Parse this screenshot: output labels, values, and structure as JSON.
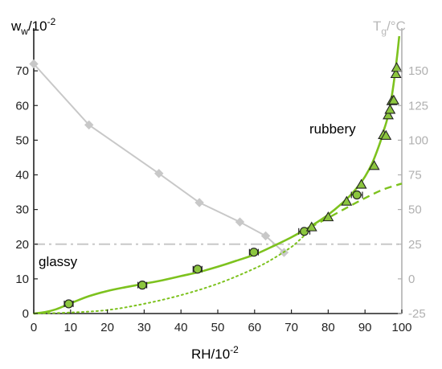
{
  "chart_data": {
    "type": "scatter",
    "xlabel": "RH/10",
    "xlabel_sup": "-2",
    "ylabel_left": "w",
    "ylabel_left_sub": "w",
    "ylabel_left_suffix": "/10",
    "ylabel_left_sup": "-2",
    "ylabel_right": "T",
    "ylabel_right_sub": "g",
    "ylabel_right_suffix": "/°C",
    "xlim": [
      0,
      100
    ],
    "ylim_left": [
      0,
      80
    ],
    "ylim_right": [
      -25,
      175
    ],
    "x_ticks": [
      "0",
      "10",
      "20",
      "30",
      "40",
      "50",
      "60",
      "70",
      "80",
      "90",
      "100"
    ],
    "y_left_ticks": [
      "0",
      "10",
      "20",
      "30",
      "40",
      "50",
      "60",
      "70"
    ],
    "y_right_ticks": [
      "-25",
      "0",
      "25",
      "50",
      "75",
      "100",
      "125",
      "150"
    ],
    "annotations": {
      "rubbery": "rubbery",
      "glassy": "glassy"
    },
    "colors": {
      "green_fill": "#8cc63f",
      "green_line": "#7dc21e",
      "gray": "#c8c8c8",
      "tg_axis": "#b0b0b0",
      "black": "#222222"
    },
    "series": [
      {
        "marker": "circle",
        "axis": "left",
        "points": [
          [
            9.5,
            2.8
          ],
          [
            29.5,
            8.2
          ],
          [
            44.5,
            12.8
          ],
          [
            59.8,
            17.7
          ],
          [
            73.5,
            23.7
          ],
          [
            87.8,
            34.2
          ]
        ],
        "x_err": [
          1.2,
          1.2,
          1.2,
          1.2,
          1.5,
          1.5
        ]
      },
      {
        "marker": "triangle",
        "axis": "left",
        "points": [
          [
            75.5,
            24.9
          ],
          [
            80,
            27.8
          ],
          [
            85,
            32.3
          ],
          [
            89,
            37.2
          ],
          [
            92.5,
            42.6
          ],
          [
            95,
            51.5
          ],
          [
            95.7,
            51.3
          ],
          [
            96.3,
            57.2
          ],
          [
            96.8,
            58.8
          ],
          [
            97.3,
            61.3
          ],
          [
            97.8,
            61.5
          ],
          [
            98.4,
            69.1
          ],
          [
            98.6,
            70.9
          ]
        ]
      },
      {
        "marker": "diamond",
        "axis": "right",
        "points": [
          [
            0,
            155
          ],
          [
            15,
            111
          ],
          [
            34,
            76
          ],
          [
            45,
            55
          ],
          [
            56,
            41
          ],
          [
            63,
            31
          ],
          [
            68,
            19
          ]
        ]
      }
    ],
    "fit_curves": {
      "solid": [
        [
          0,
          0
        ],
        [
          3,
          0.4
        ],
        [
          6,
          1.2
        ],
        [
          9,
          2.5
        ],
        [
          12,
          3.8
        ],
        [
          15,
          5
        ],
        [
          20,
          6.5
        ],
        [
          25,
          7.6
        ],
        [
          30,
          8.6
        ],
        [
          35,
          9.6
        ],
        [
          40,
          10.8
        ],
        [
          45,
          12
        ],
        [
          50,
          13.5
        ],
        [
          55,
          15.2
        ],
        [
          60,
          17
        ],
        [
          65,
          19.4
        ],
        [
          70,
          22
        ],
        [
          75,
          25
        ],
        [
          80,
          28.5
        ],
        [
          85,
          33
        ],
        [
          88,
          36.5
        ],
        [
          90,
          39.5
        ],
        [
          92,
          43.5
        ],
        [
          94,
          49
        ],
        [
          95,
          52.5
        ],
        [
          96,
          56
        ],
        [
          97,
          61
        ],
        [
          98,
          68
        ],
        [
          98.8,
          75
        ],
        [
          99.3,
          80
        ]
      ],
      "dashed": [
        [
          75,
          24.8
        ],
        [
          80,
          27.6
        ],
        [
          85,
          30.5
        ],
        [
          90,
          33.3
        ],
        [
          95,
          35.8
        ],
        [
          100,
          37.5
        ]
      ],
      "dotted": [
        [
          0,
          0
        ],
        [
          10,
          0.3
        ],
        [
          20,
          1
        ],
        [
          30,
          2.8
        ],
        [
          40,
          5.3
        ],
        [
          50,
          8.6
        ],
        [
          60,
          13
        ],
        [
          65,
          15.8
        ],
        [
          70,
          19.2
        ],
        [
          72,
          21
        ],
        [
          74,
          23
        ],
        [
          75.5,
          24.8
        ]
      ]
    },
    "reference_line_left_value": 20
  }
}
